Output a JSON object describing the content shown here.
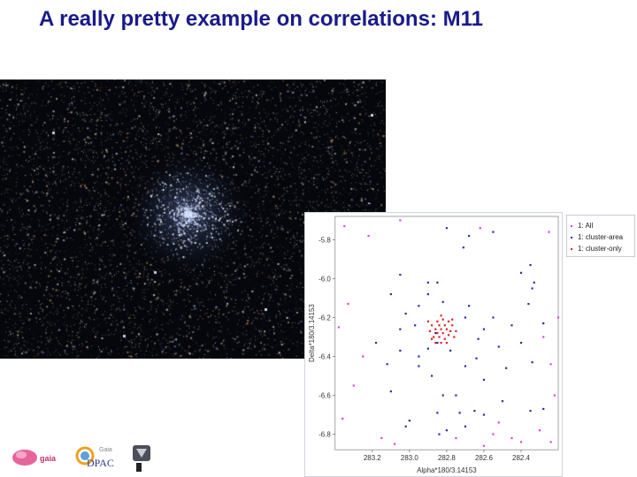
{
  "slide": {
    "title": "A really pretty example on correlations: M11"
  },
  "logos": {
    "gaia_text": "gaia",
    "dpac_text": "DPAC",
    "dpac_small": "Gaia"
  },
  "chart_data": {
    "type": "scatter",
    "xlabel": "Alpha*180/3.14153",
    "ylabel": "Delta*180/3.14153",
    "xlim": [
      283.4,
      282.2
    ],
    "ylim": [
      -6.88,
      -5.68
    ],
    "x_ticks": [
      "283.2",
      "283.0",
      "282.8",
      "282.6",
      "282.4"
    ],
    "x_tick_values": [
      283.2,
      283.0,
      282.8,
      282.6,
      282.4
    ],
    "y_ticks": [
      "-5.8",
      "-6.0",
      "-6.2",
      "-6.4",
      "-6.6",
      "-6.8"
    ],
    "y_tick_values": [
      -5.8,
      -6.0,
      -6.2,
      -6.4,
      -6.6,
      -6.8
    ],
    "x_reversed": true,
    "grid": false,
    "legend_position": "right",
    "series": [
      {
        "name": "1: All",
        "color": "#e040e0",
        "points": [
          [
            283.35,
            -5.73
          ],
          [
            283.22,
            -5.78
          ],
          [
            283.05,
            -5.7
          ],
          [
            282.62,
            -5.74
          ],
          [
            282.25,
            -5.76
          ],
          [
            283.33,
            -6.13
          ],
          [
            283.38,
            -6.25
          ],
          [
            283.25,
            -6.4
          ],
          [
            282.28,
            -6.3
          ],
          [
            282.24,
            -6.44
          ],
          [
            283.3,
            -6.55
          ],
          [
            282.22,
            -6.6
          ],
          [
            283.15,
            -6.82
          ],
          [
            282.75,
            -6.82
          ],
          [
            282.55,
            -6.8
          ],
          [
            282.3,
            -6.78
          ],
          [
            282.6,
            -6.86
          ],
          [
            282.4,
            -6.84
          ],
          [
            282.24,
            -6.84
          ],
          [
            283.08,
            -6.85
          ],
          [
            282.2,
            -6.2
          ],
          [
            282.52,
            -6.74
          ],
          [
            282.45,
            -6.82
          ],
          [
            283.36,
            -6.72
          ]
        ]
      },
      {
        "name": "1: cluster-area",
        "color": "#2a2aa8",
        "points": [
          [
            282.8,
            -5.74
          ],
          [
            282.68,
            -5.78
          ],
          [
            282.71,
            -5.84
          ],
          [
            282.55,
            -5.76
          ],
          [
            282.35,
            -5.93
          ],
          [
            283.05,
            -5.98
          ],
          [
            282.9,
            -6.02
          ],
          [
            282.85,
            -6.02
          ],
          [
            282.4,
            -5.97
          ],
          [
            282.33,
            -6.02
          ],
          [
            283.1,
            -6.08
          ],
          [
            282.9,
            -6.08
          ],
          [
            282.34,
            -6.05
          ],
          [
            282.95,
            -6.14
          ],
          [
            282.82,
            -6.12
          ],
          [
            282.68,
            -6.14
          ],
          [
            282.36,
            -6.13
          ],
          [
            283.02,
            -6.18
          ],
          [
            282.55,
            -6.2
          ],
          [
            283.05,
            -6.26
          ],
          [
            282.97,
            -6.24
          ],
          [
            282.7,
            -6.2
          ],
          [
            282.45,
            -6.24
          ],
          [
            282.6,
            -6.26
          ],
          [
            282.86,
            -6.28
          ],
          [
            282.28,
            -6.23
          ],
          [
            282.85,
            -6.33
          ],
          [
            283.18,
            -6.33
          ],
          [
            282.63,
            -6.31
          ],
          [
            282.52,
            -6.35
          ],
          [
            282.9,
            -6.36
          ],
          [
            282.78,
            -6.37
          ],
          [
            282.4,
            -6.33
          ],
          [
            283.05,
            -6.37
          ],
          [
            282.64,
            -6.41
          ],
          [
            282.95,
            -6.45
          ],
          [
            282.7,
            -6.45
          ],
          [
            283.12,
            -6.44
          ],
          [
            282.34,
            -6.43
          ],
          [
            282.48,
            -6.46
          ],
          [
            282.88,
            -6.5
          ],
          [
            282.6,
            -6.52
          ],
          [
            283.1,
            -6.58
          ],
          [
            282.82,
            -6.6
          ],
          [
            282.75,
            -6.6
          ],
          [
            282.5,
            -6.63
          ],
          [
            282.65,
            -6.68
          ],
          [
            282.73,
            -6.69
          ],
          [
            282.6,
            -6.7
          ],
          [
            282.35,
            -6.68
          ],
          [
            282.28,
            -6.67
          ],
          [
            282.85,
            -6.69
          ],
          [
            283.0,
            -6.73
          ],
          [
            283.02,
            -6.76
          ],
          [
            282.84,
            -6.8
          ],
          [
            282.7,
            -6.76
          ],
          [
            282.8,
            -6.78
          ],
          [
            282.95,
            -6.4
          ]
        ]
      },
      {
        "name": "1: cluster-only",
        "color": "#e02020",
        "points": [
          [
            282.85,
            -6.22
          ],
          [
            282.82,
            -6.21
          ],
          [
            282.79,
            -6.22
          ],
          [
            282.88,
            -6.24
          ],
          [
            282.84,
            -6.24
          ],
          [
            282.81,
            -6.24
          ],
          [
            282.77,
            -6.24
          ],
          [
            282.86,
            -6.26
          ],
          [
            282.83,
            -6.26
          ],
          [
            282.8,
            -6.26
          ],
          [
            282.78,
            -6.27
          ],
          [
            282.89,
            -6.27
          ],
          [
            282.85,
            -6.28
          ],
          [
            282.82,
            -6.28
          ],
          [
            282.79,
            -6.29
          ],
          [
            282.84,
            -6.3
          ],
          [
            282.81,
            -6.31
          ],
          [
            282.87,
            -6.3
          ],
          [
            282.76,
            -6.3
          ],
          [
            282.83,
            -6.33
          ],
          [
            282.86,
            -6.33
          ],
          [
            282.8,
            -6.33
          ],
          [
            282.83,
            -6.19
          ],
          [
            282.77,
            -6.21
          ],
          [
            282.9,
            -6.22
          ],
          [
            282.88,
            -6.31
          ],
          [
            282.75,
            -6.27
          ]
        ]
      }
    ]
  }
}
